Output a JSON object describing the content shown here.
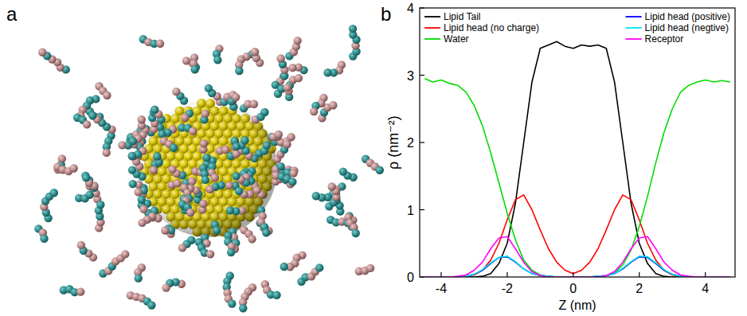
{
  "figure": {
    "panel_labels": [
      "a",
      "b"
    ]
  },
  "chart_data": {
    "type": "line",
    "x_label": "Z (nm)",
    "y_label": "ρ (nm⁻²)",
    "x": [
      -4.5,
      -4.25,
      -4,
      -3.75,
      -3.5,
      -3.25,
      -3,
      -2.75,
      -2.5,
      -2.25,
      -2,
      -1.75,
      -1.5,
      -1.25,
      -1,
      -0.75,
      -0.5,
      -0.25,
      0,
      0.25,
      0.5,
      0.75,
      1,
      1.25,
      1.5,
      1.75,
      2,
      2.25,
      2.5,
      2.75,
      3,
      3.25,
      3.5,
      3.75,
      4,
      4.25,
      4.5,
      4.75
    ],
    "xlim": [
      -4.65,
      4.9
    ],
    "xticks": [
      -4,
      -2,
      0,
      2,
      4
    ],
    "ylim": [
      0,
      4
    ],
    "yticks": [
      0,
      1,
      2,
      3,
      4
    ],
    "grid": false,
    "legend": "top",
    "series": [
      {
        "name": "Lipid Tail",
        "color": "#000000",
        "values": [
          0,
          0,
          0,
          0,
          0,
          0,
          0,
          0.01,
          0.05,
          0.2,
          0.5,
          1.1,
          2.0,
          2.9,
          3.4,
          3.45,
          3.5,
          3.43,
          3.4,
          3.45,
          3.43,
          3.45,
          3.4,
          2.9,
          2.0,
          1.1,
          0.5,
          0.2,
          0.05,
          0.01,
          0,
          0,
          0,
          0,
          0,
          0,
          0,
          0
        ]
      },
      {
        "name": "Lipid head (no charge)",
        "color": "#ff0000",
        "values": [
          0,
          0,
          0,
          0,
          0,
          0.01,
          0.03,
          0.1,
          0.25,
          0.5,
          0.85,
          1.15,
          1.22,
          1.0,
          0.7,
          0.42,
          0.22,
          0.1,
          0.05,
          0.1,
          0.22,
          0.42,
          0.7,
          1.0,
          1.22,
          1.15,
          0.85,
          0.5,
          0.25,
          0.1,
          0.03,
          0.01,
          0,
          0,
          0,
          0,
          0,
          0
        ]
      },
      {
        "name": "Water",
        "color": "#00dd00",
        "values": [
          2.95,
          2.9,
          2.93,
          2.88,
          2.85,
          2.75,
          2.55,
          2.25,
          1.85,
          1.4,
          0.95,
          0.55,
          0.25,
          0.1,
          0.03,
          0.01,
          0,
          0,
          0,
          0,
          0,
          0.01,
          0.02,
          0.06,
          0.18,
          0.4,
          0.75,
          1.2,
          1.7,
          2.15,
          2.5,
          2.75,
          2.85,
          2.9,
          2.93,
          2.9,
          2.92,
          2.9
        ]
      },
      {
        "name": "Lipid head (positive)",
        "color": "#0000ff",
        "values": [
          0,
          0,
          0,
          0,
          0,
          0.01,
          0.04,
          0.1,
          0.2,
          0.29,
          0.3,
          0.22,
          0.12,
          0.05,
          0.02,
          0.01,
          0,
          0,
          0,
          0,
          0,
          0.01,
          0.02,
          0.05,
          0.12,
          0.22,
          0.3,
          0.29,
          0.2,
          0.1,
          0.04,
          0.01,
          0,
          0,
          0,
          0,
          0,
          0
        ]
      },
      {
        "name": "Lipid head (negtive)",
        "color": "#00e5ee",
        "values": [
          0,
          0,
          0,
          0,
          0,
          0.01,
          0.04,
          0.11,
          0.21,
          0.29,
          0.31,
          0.23,
          0.12,
          0.05,
          0.02,
          0.01,
          0,
          0,
          0,
          0,
          0,
          0.01,
          0.02,
          0.05,
          0.13,
          0.23,
          0.31,
          0.3,
          0.21,
          0.11,
          0.04,
          0.01,
          0,
          0,
          0,
          0,
          0,
          0
        ]
      },
      {
        "name": "Receptor",
        "color": "#ff00ff",
        "values": [
          0,
          0,
          0,
          0,
          0.01,
          0.03,
          0.1,
          0.22,
          0.42,
          0.58,
          0.6,
          0.42,
          0.22,
          0.08,
          0.02,
          0,
          0,
          0,
          0,
          0,
          0,
          0,
          0.02,
          0.08,
          0.22,
          0.42,
          0.58,
          0.6,
          0.42,
          0.22,
          0.1,
          0.03,
          0.01,
          0,
          0,
          0,
          0,
          0
        ]
      }
    ]
  }
}
